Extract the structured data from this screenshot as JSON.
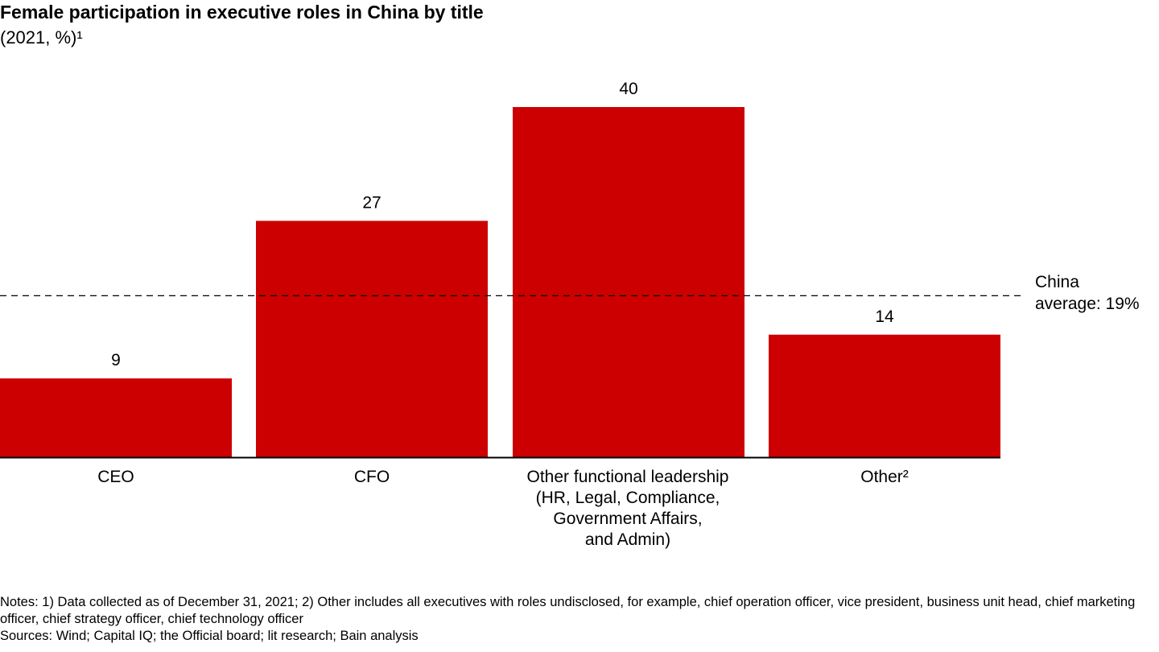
{
  "chart_data": {
    "type": "bar",
    "title": "Female participation in executive roles in China by title",
    "subtitle": "(2021, %)¹",
    "categories": [
      "CEO",
      "CFO",
      "Other functional leadership\n(HR, Legal, Compliance,\nGovernment Affairs,\nand Admin)",
      "Other²"
    ],
    "values": [
      9,
      27,
      40,
      14
    ],
    "data_labels": [
      "9",
      "27",
      "40",
      "14"
    ],
    "bar_color": "#cc0000",
    "reference_line": {
      "value": 19,
      "label_line1": "China",
      "label_line2": "average: 19%",
      "style": "dashed"
    },
    "xlabel": "",
    "ylabel": "",
    "ylim": [
      0,
      40
    ],
    "grid": false,
    "y_axis_shown": false
  },
  "notes": "Notes: 1)  Data collected as of December 31, 2021; 2) Other includes all executives with roles undisclosed, for example, chief operation officer, vice president, business unit head, chief marketing officer, chief strategy officer, chief technology officer",
  "sources": "Sources: Wind; Capital IQ; the Official board; lit research; Bain analysis"
}
